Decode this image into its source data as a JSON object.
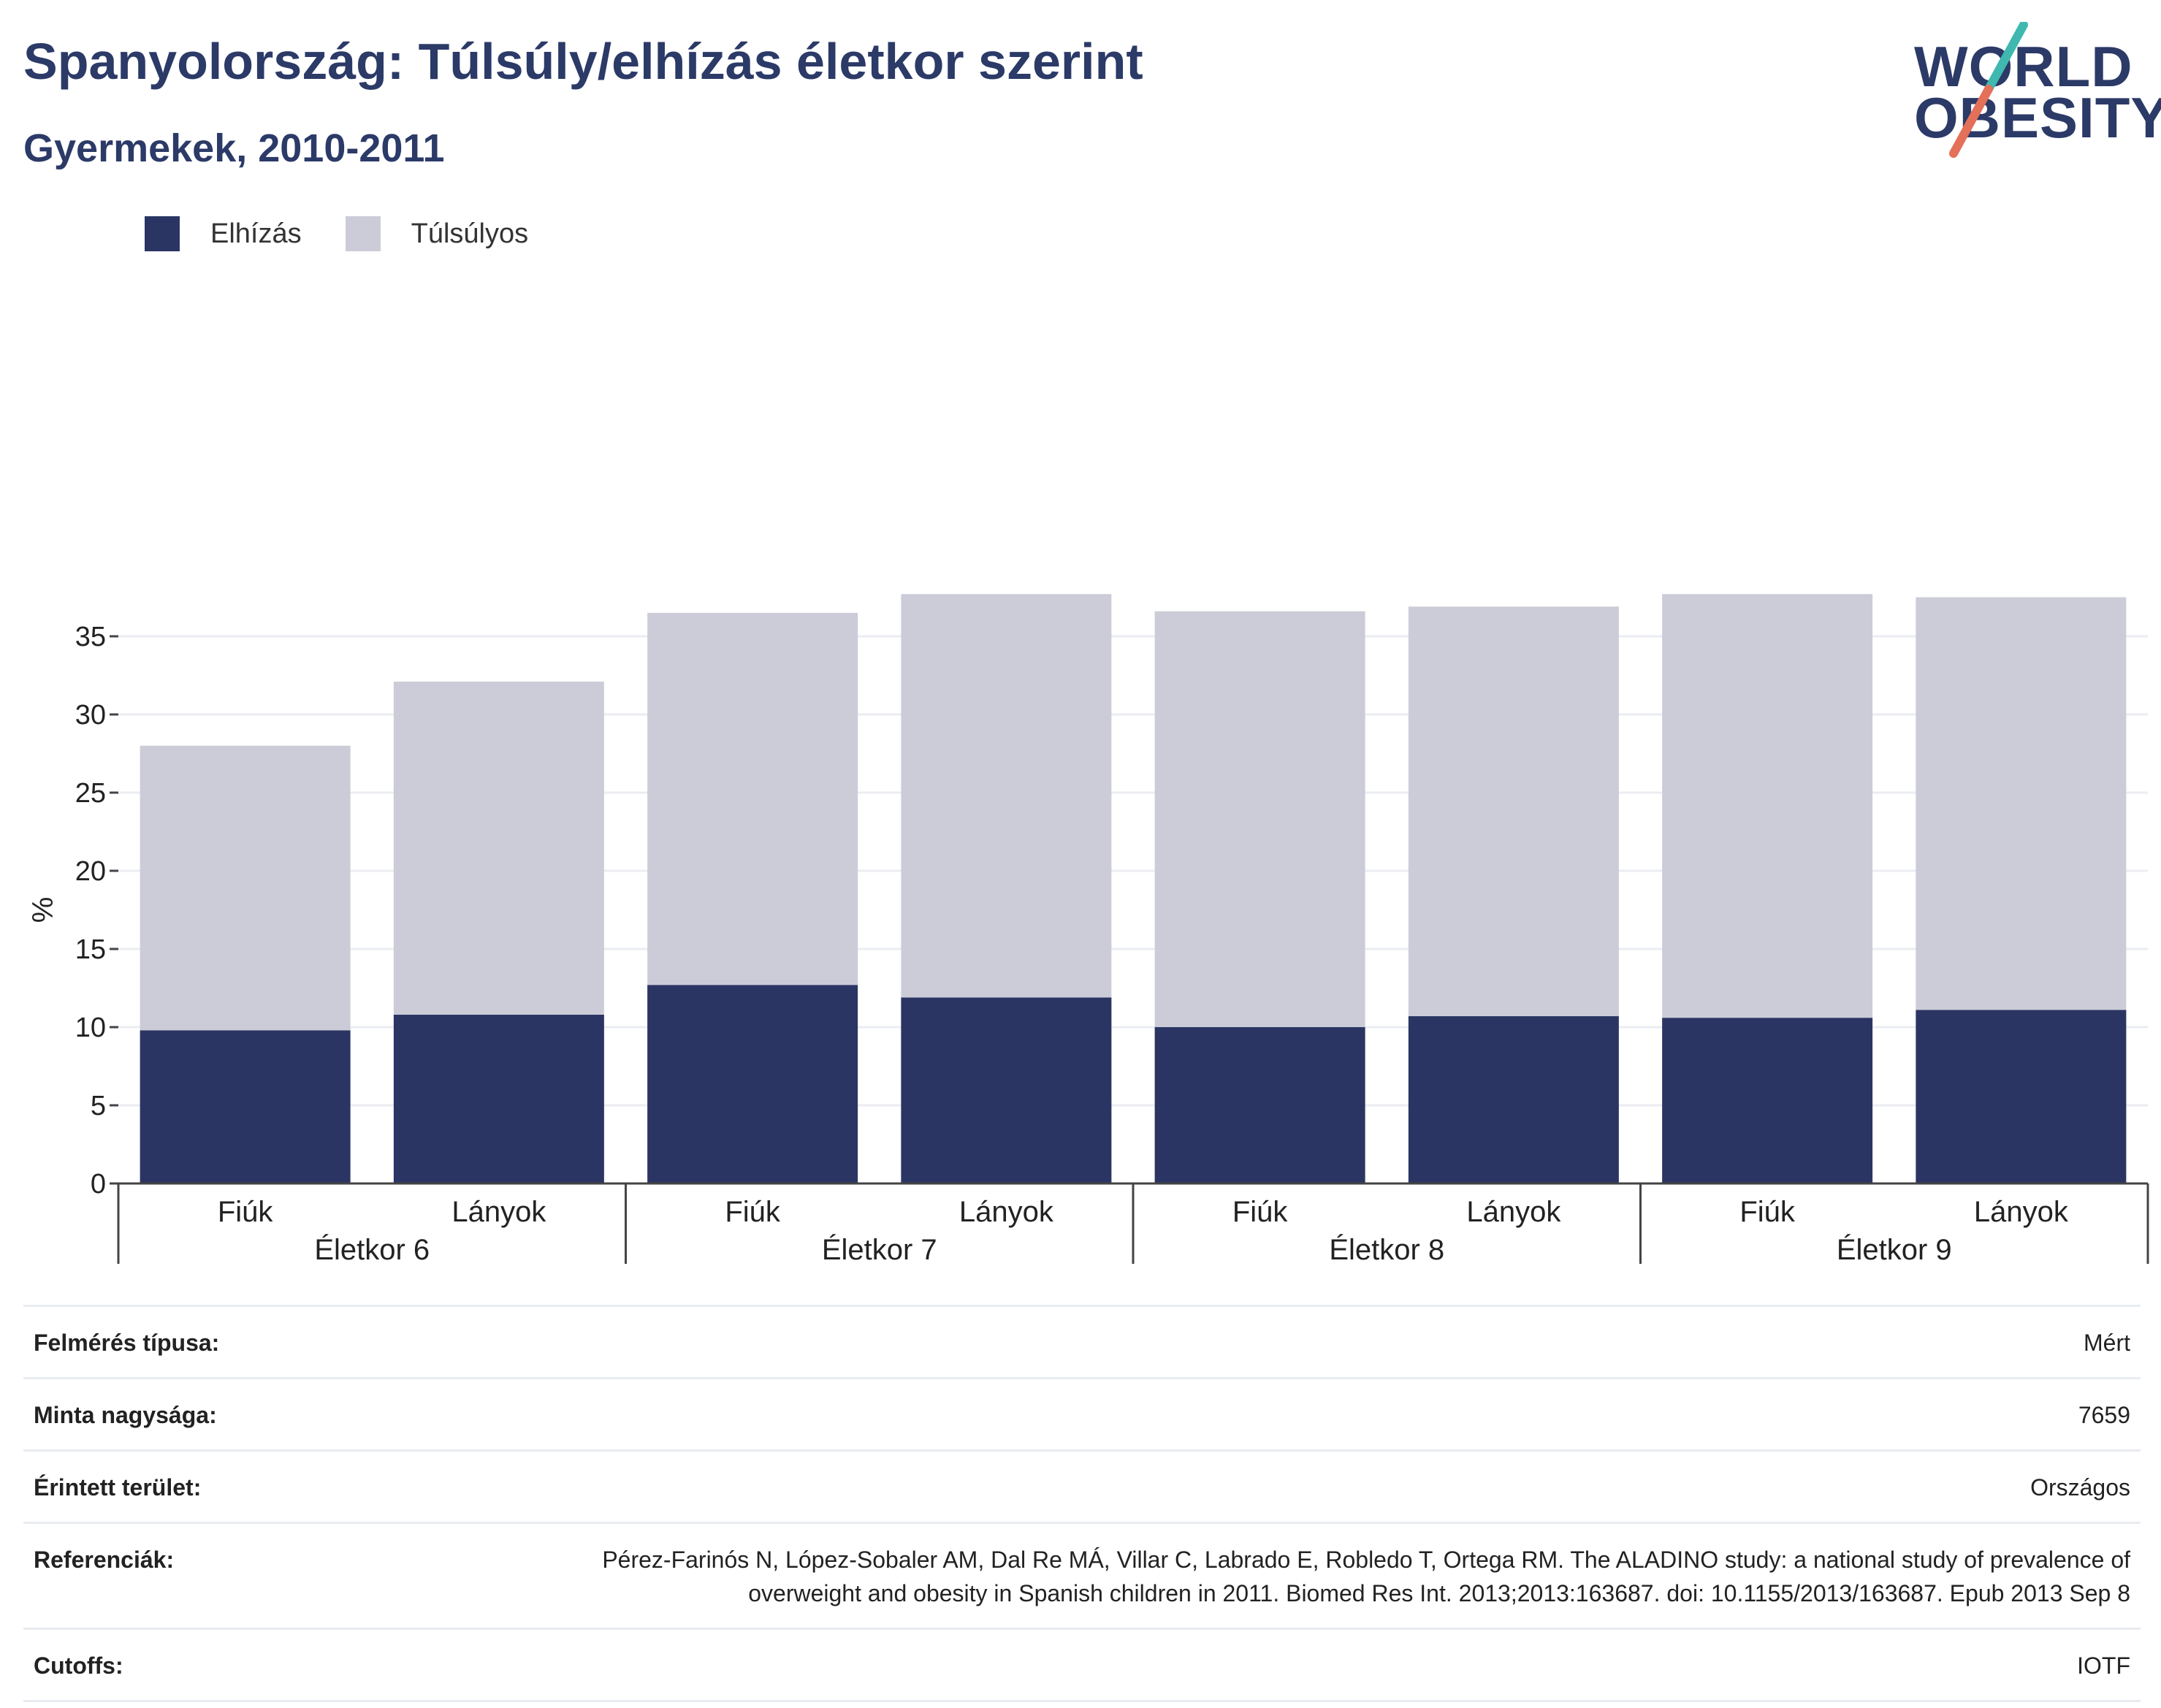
{
  "header": {
    "title": "Spanyolország: Túlsúly/elhízás életkor szerint",
    "subtitle": "Gyermekek, 2010-2011"
  },
  "logo": {
    "line1": "WORLD",
    "line2": "OBESITY",
    "accent_teal": "#3fb8b0",
    "accent_red": "#e4705a"
  },
  "colors": {
    "obesity": "#2b3563",
    "overweight": "#cbccd8",
    "text": "#2b3a67"
  },
  "chart_data": {
    "type": "bar",
    "stacked": true,
    "ylabel": "%",
    "ylim": [
      0,
      38
    ],
    "yticks": [
      0,
      5,
      10,
      15,
      20,
      25,
      30,
      35
    ],
    "grid": true,
    "legend_position": "top-left",
    "groups": [
      "Életkor 6",
      "Életkor 7",
      "Életkor 8",
      "Életkor 9"
    ],
    "categories": [
      "Fiúk",
      "Lányok",
      "Fiúk",
      "Lányok",
      "Fiúk",
      "Lányok",
      "Fiúk",
      "Lányok"
    ],
    "series": [
      {
        "name": "Elhízás",
        "values": [
          9.8,
          10.8,
          12.7,
          11.9,
          10.0,
          10.7,
          10.6,
          11.1
        ]
      },
      {
        "name": "Túlsúlyos",
        "values": [
          18.2,
          21.3,
          23.8,
          25.8,
          26.6,
          26.2,
          27.1,
          26.4
        ]
      }
    ]
  },
  "info": [
    {
      "label": "Felmérés típusa:",
      "value": "Mért"
    },
    {
      "label": "Minta nagysága:",
      "value": "7659"
    },
    {
      "label": "Érintett terület:",
      "value": "Országos"
    },
    {
      "label": "Referenciák:",
      "value": "Pérez-Farinós N, López-Sobaler AM, Dal Re MÁ, Villar C, Labrado E, Robledo T, Ortega RM. The ALADINO study: a national study of prevalence of overweight and obesity in Spanish children in 2011. Biomed Res Int. 2013;2013:163687. doi: 10.1155/2013/163687. Epub 2013 Sep 8"
    },
    {
      "label": "Cutoffs:",
      "value": "IOTF"
    }
  ]
}
